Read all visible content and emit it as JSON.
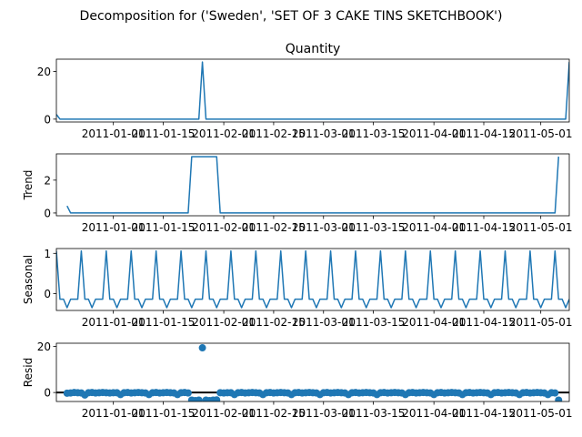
{
  "suptitle": "Decomposition for ('Sweden', 'SET OF 3 CAKE TINS SKETCHBOOK')",
  "line_color": "#1f77b4",
  "x_tick_labels": [
    "2011-01-01",
    "2011-01-15",
    "2011-02-01",
    "2011-02-15",
    "2011-03-01",
    "2011-03-15",
    "2011-04-01",
    "2011-04-15",
    "2011-05-01"
  ],
  "chart_data": [
    {
      "type": "line",
      "title": "Quantity",
      "ylabel": "",
      "x_range": [
        "2010-12-16",
        "2011-05-09"
      ],
      "ylim": [
        -1.2,
        25.2
      ],
      "yticks": [
        0,
        20
      ],
      "series": [
        {
          "points": [
            [
              "2010-12-16",
              2
            ],
            [
              "2010-12-17",
              0
            ],
            [
              "2011-01-25",
              0
            ],
            [
              "2011-01-26",
              24
            ],
            [
              "2011-01-27",
              0
            ],
            [
              "2011-05-08",
              0
            ],
            [
              "2011-05-09",
              24
            ]
          ]
        }
      ]
    },
    {
      "type": "line",
      "title": "",
      "ylabel": "Trend",
      "x_range": [
        "2010-12-16",
        "2011-05-09"
      ],
      "ylim": [
        -0.17,
        3.6
      ],
      "yticks": [
        0,
        2
      ],
      "series": [
        {
          "points": [
            [
              "2010-12-19",
              0.43
            ],
            [
              "2010-12-20",
              0.0
            ],
            [
              "2011-01-22",
              0.0
            ],
            [
              "2011-01-23",
              3.43
            ],
            [
              "2011-01-30",
              3.43
            ],
            [
              "2011-01-31",
              0.0
            ],
            [
              "2011-05-05",
              0.0
            ],
            [
              "2011-05-06",
              3.43
            ]
          ]
        }
      ]
    },
    {
      "type": "line",
      "title": "",
      "ylabel": "Seasonal",
      "x_range": [
        "2010-12-16",
        "2011-05-09"
      ],
      "ylim": [
        -0.42,
        1.12
      ],
      "yticks": [
        0,
        1
      ],
      "period": 7,
      "period_start": "2010-12-16",
      "pattern": [
        1.06,
        -0.14,
        -0.14,
        -0.35,
        -0.14,
        -0.14,
        -0.14
      ],
      "series": []
    },
    {
      "type": "scatter",
      "title": "",
      "ylabel": "Resid",
      "x_range": [
        "2010-12-16",
        "2011-05-09"
      ],
      "ylim": [
        -3.9,
        21.4
      ],
      "yticks": [
        0,
        20
      ],
      "zero_line": true,
      "series": [
        {
          "points": [
            [
              "2010-12-19",
              -0.3
            ],
            [
              "2010-12-20",
              -0.2
            ],
            [
              "2010-12-21",
              0.0
            ],
            [
              "2010-12-22",
              -0.1
            ],
            [
              "2010-12-23",
              -0.2
            ],
            [
              "2010-12-24",
              -1.1
            ],
            [
              "2010-12-25",
              -0.1
            ],
            [
              "2010-12-26",
              0.0
            ],
            [
              "2010-12-27",
              -0.2
            ],
            [
              "2010-12-28",
              -0.1
            ],
            [
              "2010-12-29",
              0.0
            ],
            [
              "2010-12-30",
              -0.1
            ],
            [
              "2010-12-31",
              -0.2
            ],
            [
              "2011-01-01",
              -0.1
            ],
            [
              "2011-01-02",
              -0.1
            ],
            [
              "2011-01-03",
              -0.9
            ],
            [
              "2011-01-04",
              -0.1
            ],
            [
              "2011-01-05",
              0.0
            ],
            [
              "2011-01-06",
              -0.2
            ],
            [
              "2011-01-07",
              -0.1
            ],
            [
              "2011-01-08",
              0.0
            ],
            [
              "2011-01-09",
              -0.1
            ],
            [
              "2011-01-10",
              -0.2
            ],
            [
              "2011-01-11",
              -0.9
            ],
            [
              "2011-01-12",
              -0.1
            ],
            [
              "2011-01-13",
              0.0
            ],
            [
              "2011-01-14",
              -0.2
            ],
            [
              "2011-01-15",
              -0.1
            ],
            [
              "2011-01-16",
              0.0
            ],
            [
              "2011-01-17",
              -0.1
            ],
            [
              "2011-01-18",
              -0.2
            ],
            [
              "2011-01-19",
              -0.9
            ],
            [
              "2011-01-20",
              -0.1
            ],
            [
              "2011-01-21",
              0.0
            ],
            [
              "2011-01-22",
              -0.2
            ],
            [
              "2011-01-23",
              -3.3
            ],
            [
              "2011-01-24",
              -3.5
            ],
            [
              "2011-01-25",
              -3.3
            ],
            [
              "2011-01-26",
              19.4
            ],
            [
              "2011-01-27",
              -3.3
            ],
            [
              "2011-01-28",
              -3.5
            ],
            [
              "2011-01-29",
              -3.3
            ],
            [
              "2011-01-30",
              -3.2
            ],
            [
              "2011-01-31",
              -0.1
            ],
            [
              "2011-02-01",
              -0.2
            ],
            [
              "2011-02-02",
              -0.1
            ],
            [
              "2011-02-03",
              -0.1
            ],
            [
              "2011-02-04",
              -0.9
            ],
            [
              "2011-02-05",
              -0.1
            ],
            [
              "2011-02-06",
              0.0
            ],
            [
              "2011-02-07",
              -0.2
            ],
            [
              "2011-02-08",
              -0.1
            ],
            [
              "2011-02-09",
              0.0
            ],
            [
              "2011-02-10",
              -0.1
            ],
            [
              "2011-02-11",
              -0.2
            ],
            [
              "2011-02-12",
              -0.9
            ],
            [
              "2011-02-13",
              -0.1
            ],
            [
              "2011-02-14",
              0.0
            ],
            [
              "2011-02-15",
              -0.2
            ],
            [
              "2011-02-16",
              -0.1
            ],
            [
              "2011-02-17",
              0.0
            ],
            [
              "2011-02-18",
              -0.1
            ],
            [
              "2011-02-19",
              -0.2
            ],
            [
              "2011-02-20",
              -0.9
            ],
            [
              "2011-02-21",
              -0.1
            ],
            [
              "2011-02-22",
              0.0
            ],
            [
              "2011-02-23",
              -0.2
            ],
            [
              "2011-02-24",
              -0.1
            ],
            [
              "2011-02-25",
              0.0
            ],
            [
              "2011-02-26",
              -0.1
            ],
            [
              "2011-02-27",
              -0.2
            ],
            [
              "2011-02-28",
              -0.9
            ],
            [
              "2011-03-01",
              -0.1
            ],
            [
              "2011-03-02",
              0.0
            ],
            [
              "2011-03-03",
              -0.2
            ],
            [
              "2011-03-04",
              -0.1
            ],
            [
              "2011-03-05",
              0.0
            ],
            [
              "2011-03-06",
              -0.1
            ],
            [
              "2011-03-07",
              -0.2
            ],
            [
              "2011-03-08",
              -0.9
            ],
            [
              "2011-03-09",
              -0.1
            ],
            [
              "2011-03-10",
              0.0
            ],
            [
              "2011-03-11",
              -0.2
            ],
            [
              "2011-03-12",
              -0.1
            ],
            [
              "2011-03-13",
              0.0
            ],
            [
              "2011-03-14",
              -0.1
            ],
            [
              "2011-03-15",
              -0.2
            ],
            [
              "2011-03-16",
              -0.9
            ],
            [
              "2011-03-17",
              -0.1
            ],
            [
              "2011-03-18",
              0.0
            ],
            [
              "2011-03-19",
              -0.2
            ],
            [
              "2011-03-20",
              -0.1
            ],
            [
              "2011-03-21",
              0.0
            ],
            [
              "2011-03-22",
              -0.1
            ],
            [
              "2011-03-23",
              -0.2
            ],
            [
              "2011-03-24",
              -0.9
            ],
            [
              "2011-03-25",
              -0.1
            ],
            [
              "2011-03-26",
              0.0
            ],
            [
              "2011-03-27",
              -0.2
            ],
            [
              "2011-03-28",
              -0.1
            ],
            [
              "2011-03-29",
              0.0
            ],
            [
              "2011-03-30",
              -0.1
            ],
            [
              "2011-03-31",
              -0.2
            ],
            [
              "2011-04-01",
              -0.9
            ],
            [
              "2011-04-02",
              -0.1
            ],
            [
              "2011-04-03",
              0.0
            ],
            [
              "2011-04-04",
              -0.2
            ],
            [
              "2011-04-05",
              -0.1
            ],
            [
              "2011-04-06",
              0.0
            ],
            [
              "2011-04-07",
              -0.1
            ],
            [
              "2011-04-08",
              -0.2
            ],
            [
              "2011-04-09",
              -0.9
            ],
            [
              "2011-04-10",
              -0.1
            ],
            [
              "2011-04-11",
              0.0
            ],
            [
              "2011-04-12",
              -0.2
            ],
            [
              "2011-04-13",
              -0.1
            ],
            [
              "2011-04-14",
              0.0
            ],
            [
              "2011-04-15",
              -0.1
            ],
            [
              "2011-04-16",
              -0.2
            ],
            [
              "2011-04-17",
              -0.9
            ],
            [
              "2011-04-18",
              -0.1
            ],
            [
              "2011-04-19",
              0.0
            ],
            [
              "2011-04-20",
              -0.2
            ],
            [
              "2011-04-21",
              -0.1
            ],
            [
              "2011-04-22",
              0.0
            ],
            [
              "2011-04-23",
              -0.1
            ],
            [
              "2011-04-24",
              -0.2
            ],
            [
              "2011-04-25",
              -0.9
            ],
            [
              "2011-04-26",
              -0.1
            ],
            [
              "2011-04-27",
              0.0
            ],
            [
              "2011-04-28",
              -0.2
            ],
            [
              "2011-04-29",
              -0.1
            ],
            [
              "2011-04-30",
              0.0
            ],
            [
              "2011-05-01",
              -0.1
            ],
            [
              "2011-05-02",
              -0.2
            ],
            [
              "2011-05-03",
              -0.9
            ],
            [
              "2011-05-04",
              -0.1
            ],
            [
              "2011-05-05",
              -0.2
            ],
            [
              "2011-05-06",
              -3.3
            ]
          ]
        }
      ]
    }
  ]
}
